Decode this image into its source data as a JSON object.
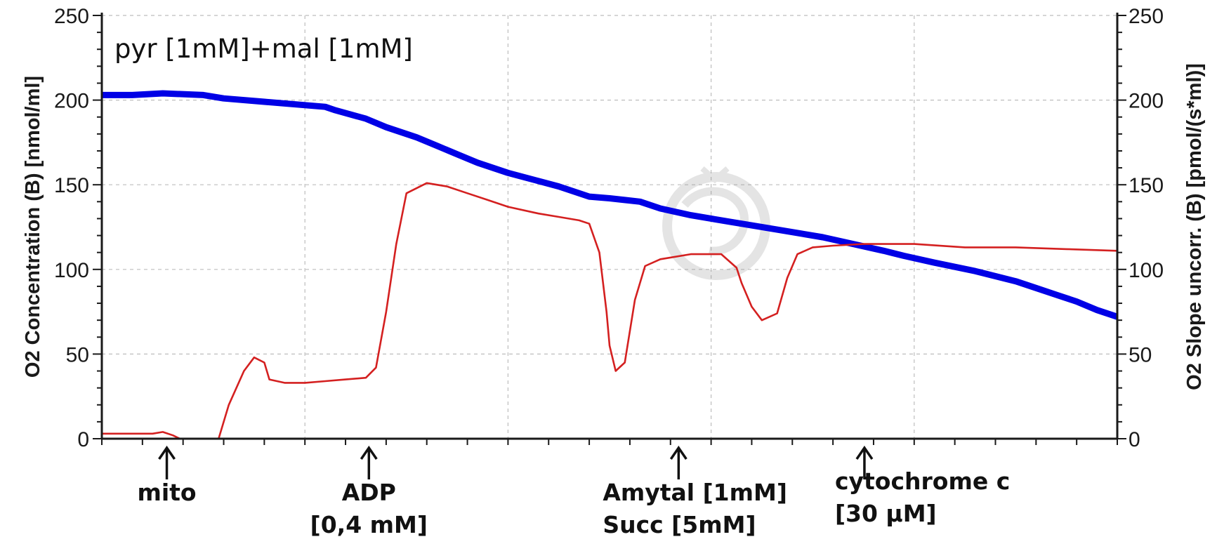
{
  "chart_data": {
    "type": "line",
    "title": "",
    "condition_label": "pyr [1mM]+mal [1mM]",
    "xlabel": "",
    "ylabel_left": "O2 Concentration (B) [nmol/ml]",
    "ylabel_right": "O2 Slope uncorr. (B) [pmol/(s*ml)]",
    "ylim_left": [
      0,
      250
    ],
    "ylim_right": [
      0,
      250
    ],
    "yticks_left": [
      "0",
      "50",
      "100",
      "150",
      "200",
      "250"
    ],
    "yticks_right": [
      "0",
      "50",
      "100",
      "150",
      "200",
      "250"
    ],
    "grid": true,
    "legend": "none",
    "watermark": "circular logo (faint grey)",
    "series": [
      {
        "axis": "left",
        "color": "#0000e6",
        "x": [
          0,
          3,
          6,
          10,
          12,
          16,
          22,
          23,
          26,
          28,
          31,
          33,
          35,
          37,
          40,
          45,
          48,
          50,
          53,
          55,
          58,
          62,
          64,
          68,
          71,
          74,
          77,
          79,
          82,
          86,
          90,
          92,
          94,
          96,
          98,
          100
        ],
        "values": [
          203,
          203,
          204,
          203,
          201,
          199,
          196,
          194,
          189,
          184,
          178,
          173,
          168,
          163,
          157,
          149,
          143,
          142,
          140,
          136,
          132,
          128,
          126,
          122,
          119,
          115,
          111,
          108,
          104,
          99,
          93,
          89,
          85,
          81,
          76,
          72
        ]
      },
      {
        "axis": "right",
        "color": "#d42020",
        "x": [
          0,
          3,
          5,
          6,
          7,
          10.5,
          11.5,
          12.5,
          14,
          15,
          16,
          16.5,
          18,
          20,
          22,
          24,
          26,
          27,
          28,
          29,
          30,
          32,
          34,
          36,
          38,
          40,
          43,
          45,
          47,
          48,
          49,
          49.7,
          50,
          50.6,
          51.5,
          52.5,
          53.5,
          55,
          58,
          61,
          62.5,
          63,
          64,
          65,
          66.5,
          67.5,
          68.5,
          70,
          72,
          75,
          80,
          85,
          90,
          95,
          100
        ],
        "values": [
          3,
          3,
          3,
          4,
          2,
          -8,
          0,
          20,
          40,
          48,
          45,
          35,
          33,
          33,
          34,
          35,
          36,
          42,
          75,
          115,
          145,
          151,
          149,
          145,
          141,
          137,
          133,
          131,
          129,
          127,
          110,
          75,
          55,
          40,
          45,
          82,
          102,
          106,
          109,
          109,
          101,
          92,
          78,
          70,
          74,
          95,
          109,
          113,
          114,
          115,
          115,
          113,
          113,
          112,
          111
        ]
      }
    ],
    "events": [
      {
        "name": "mito",
        "lines": [
          "mito"
        ],
        "x": 6.4
      },
      {
        "name": "adp",
        "lines": [
          "ADP",
          "[0,4 mM]"
        ],
        "x": 26.3
      },
      {
        "name": "amytal-succ",
        "lines": [
          "Amytal [1mM]",
          "Succ [5mM]"
        ],
        "x": 56.8
      },
      {
        "name": "cytochrome-c",
        "lines": [
          "cytochrome c",
          "[30 µM]"
        ],
        "x": 75.1
      }
    ]
  }
}
